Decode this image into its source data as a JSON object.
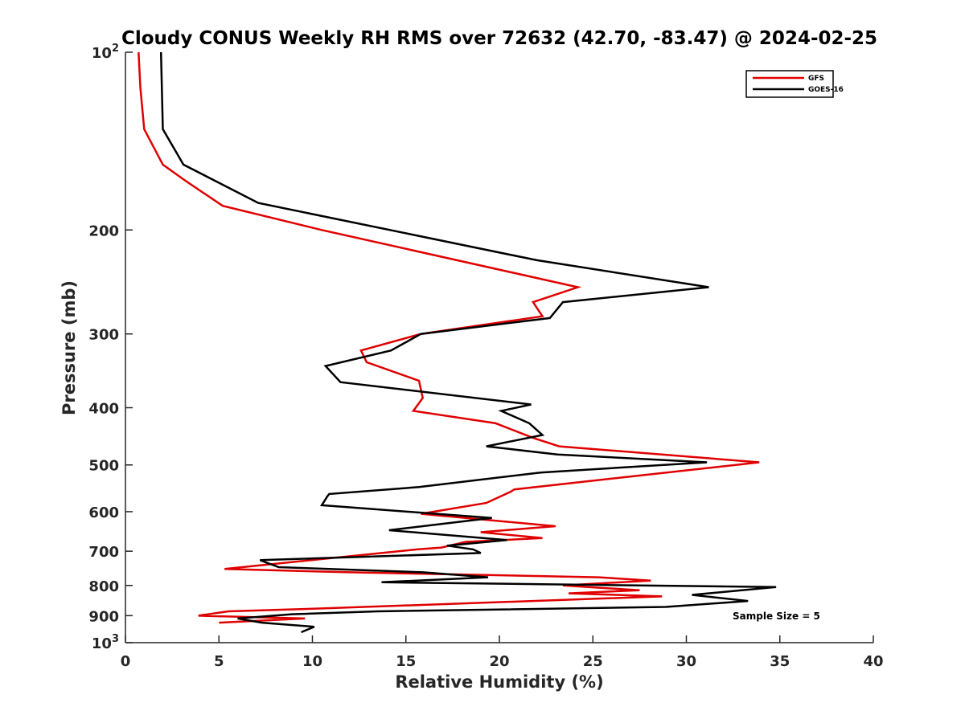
{
  "chart_data": {
    "type": "line",
    "title": "Cloudy CONUS Weekly RH RMS over 72632 (42.70, -83.47) @ 2024-02-25",
    "xlabel": "Relative Humidity (%)",
    "ylabel": "Pressure (mb)",
    "xlim": [
      0,
      40
    ],
    "ylim": [
      100,
      1000
    ],
    "y_scale": "log",
    "y_reversed": true,
    "x_ticks": [
      0,
      5,
      10,
      15,
      20,
      25,
      30,
      35,
      40
    ],
    "x_tick_labels": [
      "0",
      "5",
      "10",
      "15",
      "20",
      "25",
      "30",
      "35",
      "40"
    ],
    "y_ticks": [
      100,
      200,
      300,
      400,
      500,
      600,
      700,
      800,
      900,
      1000
    ],
    "y_tick_labels": [
      {
        "base": "10",
        "exp": "2"
      },
      {
        "base": "200"
      },
      {
        "base": "300"
      },
      {
        "base": "400"
      },
      {
        "base": "500"
      },
      {
        "base": "600"
      },
      {
        "base": "700"
      },
      {
        "base": "800"
      },
      {
        "base": "900"
      },
      {
        "base": "10",
        "exp": "3"
      }
    ],
    "grid": false,
    "legend_position": "top-right",
    "annotation": "Sample Size = 5",
    "series": [
      {
        "name": "GFS",
        "color": "#e00000",
        "points": [
          [
            0.7,
            100
          ],
          [
            0.8,
            115
          ],
          [
            1.0,
            135
          ],
          [
            2.0,
            155
          ],
          [
            3.2,
            165
          ],
          [
            5.2,
            182
          ],
          [
            10.5,
            200
          ],
          [
            24.2,
            250
          ],
          [
            21.8,
            265
          ],
          [
            22.3,
            280
          ],
          [
            15.8,
            300
          ],
          [
            12.6,
            320
          ],
          [
            12.9,
            335
          ],
          [
            15.7,
            360
          ],
          [
            15.9,
            385
          ],
          [
            15.4,
            405
          ],
          [
            19.8,
            425
          ],
          [
            21.8,
            450
          ],
          [
            23.2,
            465
          ],
          [
            33.9,
            495
          ],
          [
            20.8,
            550
          ],
          [
            20.6,
            555
          ],
          [
            19.3,
            580
          ],
          [
            15.8,
            605
          ],
          [
            23.0,
            635
          ],
          [
            19.0,
            650
          ],
          [
            22.3,
            665
          ],
          [
            18.2,
            675
          ],
          [
            16.9,
            690
          ],
          [
            15.6,
            695
          ],
          [
            5.3,
            750
          ],
          [
            12.0,
            760
          ],
          [
            25.3,
            775
          ],
          [
            28.1,
            785
          ],
          [
            23.4,
            800
          ],
          [
            27.5,
            815
          ],
          [
            23.7,
            825
          ],
          [
            28.7,
            835
          ],
          [
            10.5,
            875
          ],
          [
            5.5,
            885
          ],
          [
            3.9,
            900
          ],
          [
            9.6,
            910
          ],
          [
            5.0,
            925
          ]
        ]
      },
      {
        "name": "GOES-16",
        "color": "#000000",
        "points": [
          [
            1.9,
            100
          ],
          [
            2.0,
            135
          ],
          [
            3.1,
            155
          ],
          [
            7.1,
            180
          ],
          [
            22.0,
            225
          ],
          [
            31.2,
            250
          ],
          [
            23.4,
            265
          ],
          [
            22.7,
            282
          ],
          [
            15.8,
            300
          ],
          [
            14.2,
            320
          ],
          [
            10.7,
            340
          ],
          [
            11.5,
            362
          ],
          [
            21.7,
            395
          ],
          [
            20.1,
            405
          ],
          [
            21.6,
            425
          ],
          [
            22.3,
            445
          ],
          [
            19.3,
            465
          ],
          [
            23.1,
            480
          ],
          [
            31.1,
            495
          ],
          [
            22.2,
            515
          ],
          [
            15.7,
            545
          ],
          [
            10.9,
            560
          ],
          [
            10.8,
            565
          ],
          [
            10.5,
            585
          ],
          [
            19.6,
            615
          ],
          [
            14.1,
            645
          ],
          [
            20.4,
            670
          ],
          [
            17.2,
            685
          ],
          [
            18.6,
            695
          ],
          [
            19.0,
            705
          ],
          [
            7.2,
            725
          ],
          [
            8.2,
            745
          ],
          [
            15.9,
            760
          ],
          [
            19.4,
            775
          ],
          [
            13.7,
            790
          ],
          [
            34.8,
            805
          ],
          [
            30.3,
            830
          ],
          [
            33.3,
            850
          ],
          [
            28.9,
            870
          ],
          [
            13.5,
            885
          ],
          [
            8.9,
            895
          ],
          [
            6.0,
            910
          ],
          [
            7.3,
            925
          ],
          [
            10.1,
            940
          ],
          [
            9.4,
            960
          ]
        ]
      }
    ]
  }
}
